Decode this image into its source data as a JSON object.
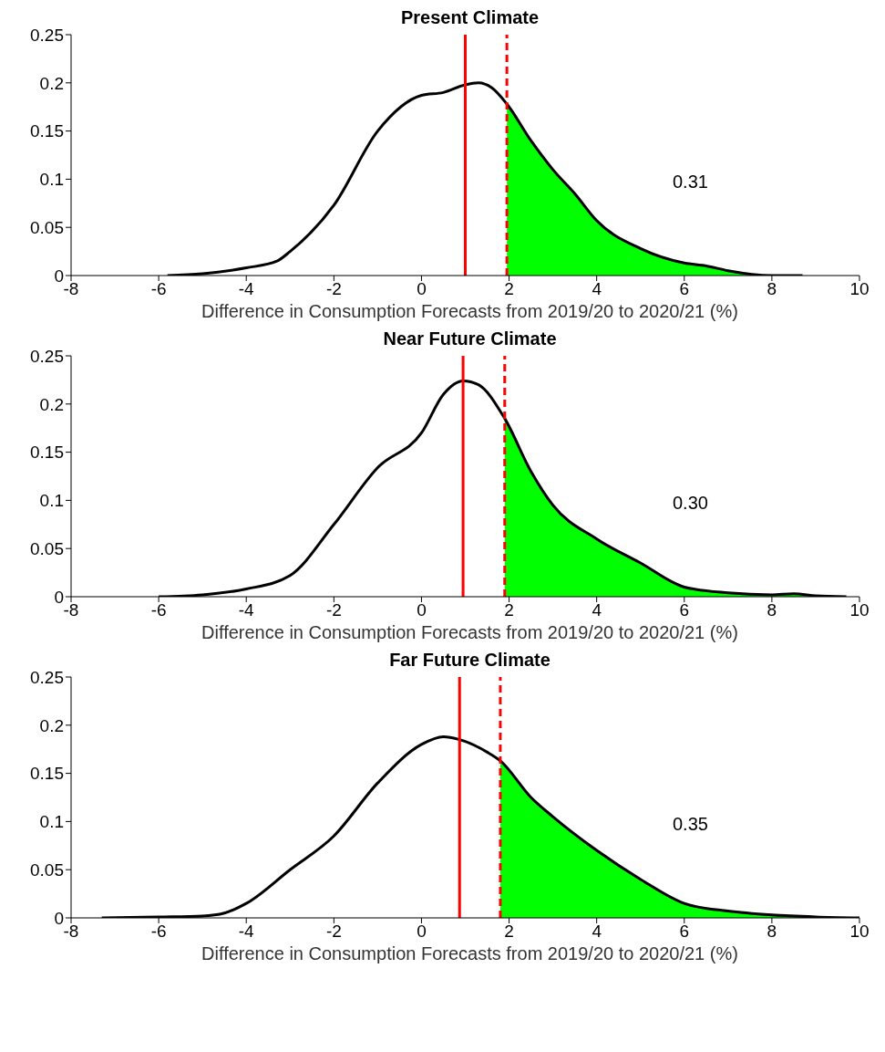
{
  "chart_data": [
    {
      "type": "line",
      "title": "Present Climate",
      "xlabel": "Difference in Consumption Forecasts from 2019/20 to 2020/21 (%)",
      "xlim": [
        -8,
        10
      ],
      "xticks": [
        -8,
        -6,
        -4,
        -2,
        0,
        2,
        4,
        6,
        8,
        10
      ],
      "ylim": [
        0,
        0.25
      ],
      "yticks": [
        0,
        0.05,
        0.1,
        0.15,
        0.2,
        0.25
      ],
      "grid": false,
      "series": [
        {
          "type": "area",
          "color": "#00ff00",
          "x": [
            1.95,
            2.5,
            3,
            3.5,
            4,
            5,
            6,
            6.5,
            7,
            8,
            8.7
          ],
          "values": [
            0.178,
            0.14,
            0.11,
            0.085,
            0.057,
            0.028,
            0.013,
            0.01,
            0.005,
            0,
            0
          ]
        },
        {
          "type": "line",
          "color": "#000000",
          "x": [
            -5.8,
            -5,
            -4,
            -3.3,
            -3,
            -2,
            -1,
            0,
            0.5,
            1,
            1.3,
            1.6,
            1.95,
            2.5,
            3,
            3.5,
            4,
            5,
            6,
            6.5,
            7,
            8,
            8.7
          ],
          "values": [
            0,
            0.002,
            0.008,
            0.015,
            0.025,
            0.073,
            0.15,
            0.187,
            0.19,
            0.198,
            0.2,
            0.195,
            0.178,
            0.14,
            0.11,
            0.085,
            0.057,
            0.028,
            0.013,
            0.01,
            0.005,
            0,
            0
          ]
        }
      ],
      "ref_lines": [
        {
          "axis": "x",
          "value": 1,
          "color": "#ff0000",
          "line_style": "solid"
        },
        {
          "axis": "x",
          "value": 1.95,
          "color": "#ff0000",
          "line_style": "dashed"
        }
      ],
      "annotations": [
        "0.31"
      ]
    },
    {
      "type": "line",
      "title": "Near Future Climate",
      "xlabel": "Difference in Consumption Forecasts from 2019/20 to 2020/21 (%)",
      "xlim": [
        -8,
        10
      ],
      "xticks": [
        -8,
        -6,
        -4,
        -2,
        0,
        2,
        4,
        6,
        8,
        10
      ],
      "ylim": [
        0,
        0.25
      ],
      "yticks": [
        0,
        0.05,
        0.1,
        0.15,
        0.2,
        0.25
      ],
      "grid": false,
      "series": [
        {
          "type": "area",
          "color": "#00ff00",
          "x": [
            1.9,
            2.5,
            3,
            4,
            5,
            6,
            7,
            8,
            8.5,
            9,
            9.7
          ],
          "values": [
            0.185,
            0.13,
            0.095,
            0.06,
            0.035,
            0.01,
            0.004,
            0.002,
            0.003,
            0.001,
            0
          ]
        },
        {
          "type": "line",
          "color": "#000000",
          "x": [
            -6,
            -5,
            -4,
            -3,
            -2,
            -1,
            0,
            0.5,
            0.95,
            1.3,
            1.9,
            2.5,
            3,
            4,
            5,
            6,
            7,
            8,
            8.5,
            9,
            9.7
          ],
          "values": [
            0,
            0.002,
            0.008,
            0.022,
            0.075,
            0.134,
            0.17,
            0.21,
            0.224,
            0.22,
            0.185,
            0.13,
            0.095,
            0.06,
            0.035,
            0.01,
            0.004,
            0.002,
            0.003,
            0.001,
            0
          ]
        }
      ],
      "ref_lines": [
        {
          "axis": "x",
          "value": 0.95,
          "color": "#ff0000",
          "line_style": "solid"
        },
        {
          "axis": "x",
          "value": 1.9,
          "color": "#ff0000",
          "line_style": "dashed"
        }
      ],
      "annotations": [
        "0.30"
      ]
    },
    {
      "type": "line",
      "title": "Far Future Climate",
      "xlabel": "Difference in Consumption Forecasts from 2019/20 to 2020/21 (%)",
      "xlim": [
        -8,
        10
      ],
      "xticks": [
        -8,
        -6,
        -4,
        -2,
        0,
        2,
        4,
        6,
        8,
        10
      ],
      "ylim": [
        0,
        0.25
      ],
      "yticks": [
        0,
        0.05,
        0.1,
        0.15,
        0.2,
        0.25
      ],
      "grid": false,
      "series": [
        {
          "type": "area",
          "color": "#00ff00",
          "x": [
            1.8,
            2.5,
            3,
            4,
            5,
            6,
            7,
            8,
            9,
            10
          ],
          "values": [
            0.163,
            0.125,
            0.105,
            0.07,
            0.04,
            0.015,
            0.007,
            0.003,
            0.001,
            0
          ]
        },
        {
          "type": "line",
          "color": "#000000",
          "x": [
            -7.3,
            -6,
            -5,
            -4.5,
            -4,
            -3,
            -2,
            -1,
            0,
            0.5,
            0.87,
            1.5,
            1.8,
            2.5,
            3,
            4,
            5,
            6,
            7,
            8,
            9,
            10
          ],
          "values": [
            0,
            0.001,
            0.002,
            0.005,
            0.015,
            0.05,
            0.085,
            0.14,
            0.18,
            0.188,
            0.185,
            0.172,
            0.163,
            0.125,
            0.105,
            0.07,
            0.04,
            0.015,
            0.007,
            0.003,
            0.001,
            0
          ]
        }
      ],
      "ref_lines": [
        {
          "axis": "x",
          "value": 0.87,
          "color": "#ff0000",
          "line_style": "solid"
        },
        {
          "axis": "x",
          "value": 1.8,
          "color": "#ff0000",
          "line_style": "dashed"
        }
      ],
      "annotations": [
        "0.35"
      ]
    }
  ]
}
